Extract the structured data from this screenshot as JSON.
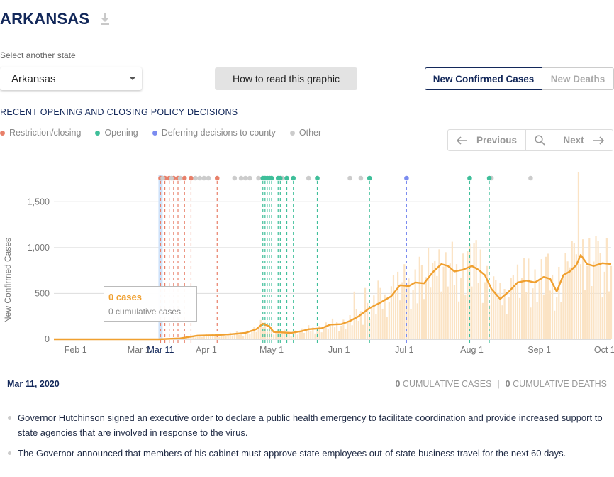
{
  "header": {
    "state_title": "ARKANSAS",
    "download_icon": "download-icon"
  },
  "state_selector": {
    "label": "Select another state",
    "selected": "Arkansas"
  },
  "how_to_read_label": "How to read this graphic",
  "metric_toggle": {
    "active": "New Confirmed Cases",
    "inactive": "New Deaths"
  },
  "policy_heading": "RECENT OPENING AND CLOSING POLICY DECISIONS",
  "legend": [
    {
      "label": "Restriction/closing",
      "color": "#e8806a"
    },
    {
      "label": "Opening",
      "color": "#3fbf9a"
    },
    {
      "label": "Deferring decisions to county",
      "color": "#7b8cf0"
    },
    {
      "label": "Other",
      "color": "#cccccc"
    }
  ],
  "pager": {
    "prev_label": "Previous",
    "next_label": "Next"
  },
  "tooltip": {
    "cases": "0 cases",
    "cumulative": "0 cumulative cases"
  },
  "selected_date": "Mar 11, 2020",
  "cumulative": {
    "cases_value": "0",
    "cases_label": "CUMULATIVE CASES",
    "deaths_value": "0",
    "deaths_label": "CUMULATIVE DEATHS",
    "separator": "|"
  },
  "events": [
    "Governor Hutchinson signed an executive order to declare a public health emergency to facilitate coordination and provide increased support to state agencies that are involved in response to the virus.",
    "The Governor announced that members of his cabinet must approve state employees out-of-state business travel for the next 60 days."
  ],
  "chart_data": {
    "type": "line",
    "ylabel": "New Confirmed Cases",
    "ylim": [
      0,
      1750
    ],
    "yticks": [
      0,
      500,
      1000,
      1500
    ],
    "ytick_labels": [
      "0",
      "500",
      "1,000",
      "1,500"
    ],
    "xlim": [
      "2020-01-22",
      "2020-10-04"
    ],
    "xticks": [
      {
        "date": "2020-02-01",
        "label": "Feb 1"
      },
      {
        "date": "2020-03-01",
        "label": "Mar 1"
      },
      {
        "date": "2020-04-01",
        "label": "Apr 1"
      },
      {
        "date": "2020-05-01",
        "label": "May 1"
      },
      {
        "date": "2020-06-01",
        "label": "Jun 1"
      },
      {
        "date": "2020-07-01",
        "label": "Jul 1"
      },
      {
        "date": "2020-08-01",
        "label": "Aug 1"
      },
      {
        "date": "2020-09-01",
        "label": "Sep 1"
      },
      {
        "date": "2020-10-01",
        "label": "Oct 1"
      }
    ],
    "selected": {
      "date": "2020-03-11",
      "label": "Mar 11"
    },
    "avg_color": "#f0a030",
    "bar_color": "#fbe3c4",
    "moving_average": [
      [
        "2020-01-22",
        0
      ],
      [
        "2020-03-10",
        0
      ],
      [
        "2020-03-20",
        10
      ],
      [
        "2020-03-28",
        40
      ],
      [
        "2020-04-05",
        45
      ],
      [
        "2020-04-12",
        55
      ],
      [
        "2020-04-19",
        70
      ],
      [
        "2020-04-24",
        110
      ],
      [
        "2020-04-27",
        170
      ],
      [
        "2020-04-30",
        140
      ],
      [
        "2020-05-02",
        80
      ],
      [
        "2020-05-10",
        70
      ],
      [
        "2020-05-15",
        90
      ],
      [
        "2020-05-18",
        110
      ],
      [
        "2020-05-24",
        120
      ],
      [
        "2020-05-28",
        160
      ],
      [
        "2020-06-02",
        165
      ],
      [
        "2020-06-06",
        200
      ],
      [
        "2020-06-10",
        250
      ],
      [
        "2020-06-15",
        340
      ],
      [
        "2020-06-20",
        400
      ],
      [
        "2020-06-25",
        470
      ],
      [
        "2020-06-29",
        590
      ],
      [
        "2020-07-03",
        580
      ],
      [
        "2020-07-06",
        620
      ],
      [
        "2020-07-10",
        610
      ],
      [
        "2020-07-14",
        730
      ],
      [
        "2020-07-18",
        820
      ],
      [
        "2020-07-21",
        800
      ],
      [
        "2020-07-24",
        740
      ],
      [
        "2020-07-28",
        760
      ],
      [
        "2020-08-01",
        800
      ],
      [
        "2020-08-04",
        760
      ],
      [
        "2020-08-07",
        700
      ],
      [
        "2020-08-10",
        550
      ],
      [
        "2020-08-14",
        440
      ],
      [
        "2020-08-18",
        520
      ],
      [
        "2020-08-22",
        620
      ],
      [
        "2020-08-26",
        640
      ],
      [
        "2020-08-30",
        620
      ],
      [
        "2020-09-03",
        680
      ],
      [
        "2020-09-06",
        660
      ],
      [
        "2020-09-09",
        520
      ],
      [
        "2020-09-12",
        700
      ],
      [
        "2020-09-15",
        740
      ],
      [
        "2020-09-18",
        810
      ],
      [
        "2020-09-20",
        920
      ],
      [
        "2020-09-23",
        820
      ],
      [
        "2020-09-26",
        800
      ],
      [
        "2020-09-30",
        830
      ],
      [
        "2020-10-04",
        820
      ]
    ],
    "daily_spikes": [
      [
        "2020-06-08",
        520
      ],
      [
        "2020-06-13",
        560
      ],
      [
        "2020-06-19",
        640
      ],
      [
        "2020-06-26",
        700
      ],
      [
        "2020-07-02",
        610
      ],
      [
        "2020-07-08",
        900
      ],
      [
        "2020-07-12",
        1000
      ],
      [
        "2020-07-15",
        860
      ],
      [
        "2020-07-20",
        950
      ],
      [
        "2020-07-25",
        820
      ],
      [
        "2020-07-30",
        960
      ],
      [
        "2020-08-02",
        1050
      ],
      [
        "2020-08-05",
        980
      ],
      [
        "2020-08-12",
        650
      ],
      [
        "2020-08-20",
        700
      ],
      [
        "2020-08-27",
        880
      ],
      [
        "2020-09-04",
        900
      ],
      [
        "2020-09-10",
        790
      ],
      [
        "2020-09-14",
        850
      ],
      [
        "2020-09-17",
        1050
      ],
      [
        "2020-09-19",
        1820
      ],
      [
        "2020-09-24",
        1100
      ],
      [
        "2020-09-28",
        1070
      ],
      [
        "2020-10-02",
        1100
      ]
    ],
    "policy_events": [
      {
        "date": "2020-03-11",
        "type": "restriction"
      },
      {
        "date": "2020-03-13",
        "type": "restriction"
      },
      {
        "date": "2020-03-15",
        "type": "restriction"
      },
      {
        "date": "2020-03-17",
        "type": "restriction"
      },
      {
        "date": "2020-03-19",
        "type": "restriction"
      },
      {
        "date": "2020-03-22",
        "type": "restriction"
      },
      {
        "date": "2020-03-25",
        "type": "restriction"
      },
      {
        "date": "2020-04-06",
        "type": "restriction"
      },
      {
        "date": "2020-03-12",
        "type": "other"
      },
      {
        "date": "2020-03-16",
        "type": "other"
      },
      {
        "date": "2020-03-20",
        "type": "other"
      },
      {
        "date": "2020-03-27",
        "type": "other"
      },
      {
        "date": "2020-03-29",
        "type": "other"
      },
      {
        "date": "2020-03-31",
        "type": "other"
      },
      {
        "date": "2020-04-02",
        "type": "other"
      },
      {
        "date": "2020-04-14",
        "type": "other"
      },
      {
        "date": "2020-04-17",
        "type": "other"
      },
      {
        "date": "2020-04-19",
        "type": "other"
      },
      {
        "date": "2020-04-21",
        "type": "other"
      },
      {
        "date": "2020-04-25",
        "type": "other"
      },
      {
        "date": "2020-05-06",
        "type": "other"
      },
      {
        "date": "2020-05-18",
        "type": "other"
      },
      {
        "date": "2020-05-22",
        "type": "other"
      },
      {
        "date": "2020-06-06",
        "type": "other"
      },
      {
        "date": "2020-06-11",
        "type": "other"
      },
      {
        "date": "2020-08-10",
        "type": "other"
      },
      {
        "date": "2020-08-28",
        "type": "other"
      },
      {
        "date": "2020-04-27",
        "type": "opening"
      },
      {
        "date": "2020-04-28",
        "type": "opening"
      },
      {
        "date": "2020-04-29",
        "type": "opening"
      },
      {
        "date": "2020-04-30",
        "type": "opening"
      },
      {
        "date": "2020-05-01",
        "type": "opening"
      },
      {
        "date": "2020-05-04",
        "type": "opening"
      },
      {
        "date": "2020-05-05",
        "type": "opening"
      },
      {
        "date": "2020-05-08",
        "type": "opening"
      },
      {
        "date": "2020-05-11",
        "type": "opening"
      },
      {
        "date": "2020-05-22",
        "type": "opening"
      },
      {
        "date": "2020-06-15",
        "type": "opening"
      },
      {
        "date": "2020-07-31",
        "type": "opening"
      },
      {
        "date": "2020-08-09",
        "type": "opening"
      },
      {
        "date": "2020-07-02",
        "type": "county"
      }
    ]
  }
}
